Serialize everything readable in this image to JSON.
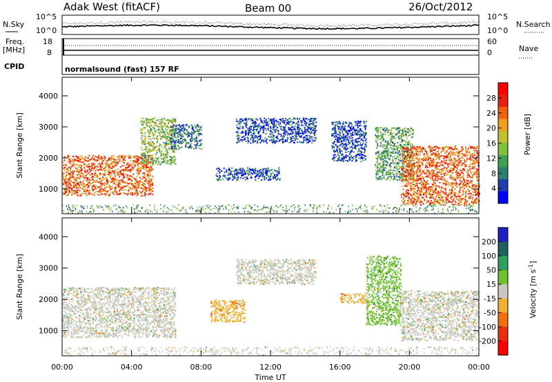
{
  "header": {
    "title": "Adak West (fitACF)",
    "beam": "Beam 00",
    "date": "26/Oct/2012"
  },
  "top_panels": {
    "noise_left_label": "N.Sky",
    "noise_right_label": "N.Search",
    "noise_left_ticks": [
      "10^5",
      "10^0"
    ],
    "noise_right_ticks": [
      "10^5",
      "10^0"
    ],
    "freq_label_line1": "Freq.",
    "freq_label_line2": "[MHz]",
    "freq_ticks": [
      "18",
      "8"
    ],
    "nave_label": "Nave",
    "nave_ticks": [
      "60",
      "0"
    ],
    "cpid_label": "CPID",
    "cpid_text": "normalsound (fast) 157 RF"
  },
  "chart_data": [
    {
      "type": "heatmap",
      "panel": "power",
      "ylabel": "Slant Range [km]",
      "ylim": [
        200,
        4600
      ],
      "yticks": [
        "1000",
        "2000",
        "3000",
        "4000"
      ],
      "xlabel": "Time UT",
      "xticks": [
        "00:00",
        "04:00",
        "08:00",
        "12:00",
        "16:00",
        "20:00",
        "00:00"
      ],
      "colorbar_label": "Power [dB]",
      "colorbar_ticks": [
        "4",
        "8",
        "12",
        "16",
        "20",
        "24",
        "28"
      ],
      "colors": [
        "#0000ff",
        "#1f3fb0",
        "#2f7f6f",
        "#3fa04f",
        "#7fbf3f",
        "#c0c030",
        "#f0a020",
        "#f06010",
        "#e82010",
        "#ff0000"
      ],
      "regions": [
        {
          "t0": 0.0,
          "t1": 5.2,
          "r0": 800,
          "r1": 2100,
          "level": 26
        },
        {
          "t0": 4.5,
          "t1": 6.5,
          "r0": 1800,
          "r1": 3300,
          "level": 14
        },
        {
          "t0": 6.2,
          "t1": 8.0,
          "r0": 2300,
          "r1": 3100,
          "level": 6
        },
        {
          "t0": 8.8,
          "t1": 12.5,
          "r0": 1300,
          "r1": 1700,
          "level": 5
        },
        {
          "t0": 10.0,
          "t1": 14.6,
          "r0": 2500,
          "r1": 3300,
          "level": 5
        },
        {
          "t0": 15.5,
          "t1": 17.5,
          "r0": 1900,
          "r1": 3200,
          "level": 4
        },
        {
          "t0": 18.0,
          "t1": 20.2,
          "r0": 1300,
          "r1": 3000,
          "level": 12
        },
        {
          "t0": 19.5,
          "t1": 24.0,
          "r0": 500,
          "r1": 2400,
          "level": 26
        }
      ]
    },
    {
      "type": "heatmap",
      "panel": "velocity",
      "ylabel": "Slant Range [km]",
      "ylim": [
        200,
        4600
      ],
      "yticks": [
        "1000",
        "2000",
        "3000",
        "4000"
      ],
      "xlabel": "Time UT",
      "xticks": [
        "00:00",
        "04:00",
        "08:00",
        "12:00",
        "16:00",
        "20:00",
        "00:00"
      ],
      "colorbar_label": "Velocity [m s^-1]",
      "colorbar_ticks": [
        "200",
        "100",
        "50",
        "15",
        "-15",
        "-50",
        "-100",
        "-200"
      ],
      "colors": [
        "#2020c0",
        "#206060",
        "#30a060",
        "#70c030",
        "#c8c8c0",
        "#f0b030",
        "#f07010",
        "#e83010",
        "#ff0000"
      ],
      "regions": [
        {
          "t0": 0.0,
          "t1": 6.5,
          "r0": 800,
          "r1": 2400,
          "velocity": 0
        },
        {
          "t0": 8.5,
          "t1": 10.5,
          "r0": 1300,
          "r1": 2000,
          "velocity": -40
        },
        {
          "t0": 10.0,
          "t1": 14.6,
          "r0": 2500,
          "r1": 3300,
          "velocity": 0
        },
        {
          "t0": 16.0,
          "t1": 17.5,
          "r0": 1900,
          "r1": 2200,
          "velocity": -60
        },
        {
          "t0": 17.5,
          "t1": 19.5,
          "r0": 1200,
          "r1": 3400,
          "velocity": 30
        },
        {
          "t0": 19.5,
          "t1": 24.0,
          "r0": 700,
          "r1": 2300,
          "velocity": 0
        }
      ]
    }
  ],
  "bottom_axis": {
    "xlabel": "Time UT",
    "xticks": [
      "00:00",
      "04:00",
      "08:00",
      "12:00",
      "16:00",
      "20:00",
      "00:00"
    ]
  }
}
